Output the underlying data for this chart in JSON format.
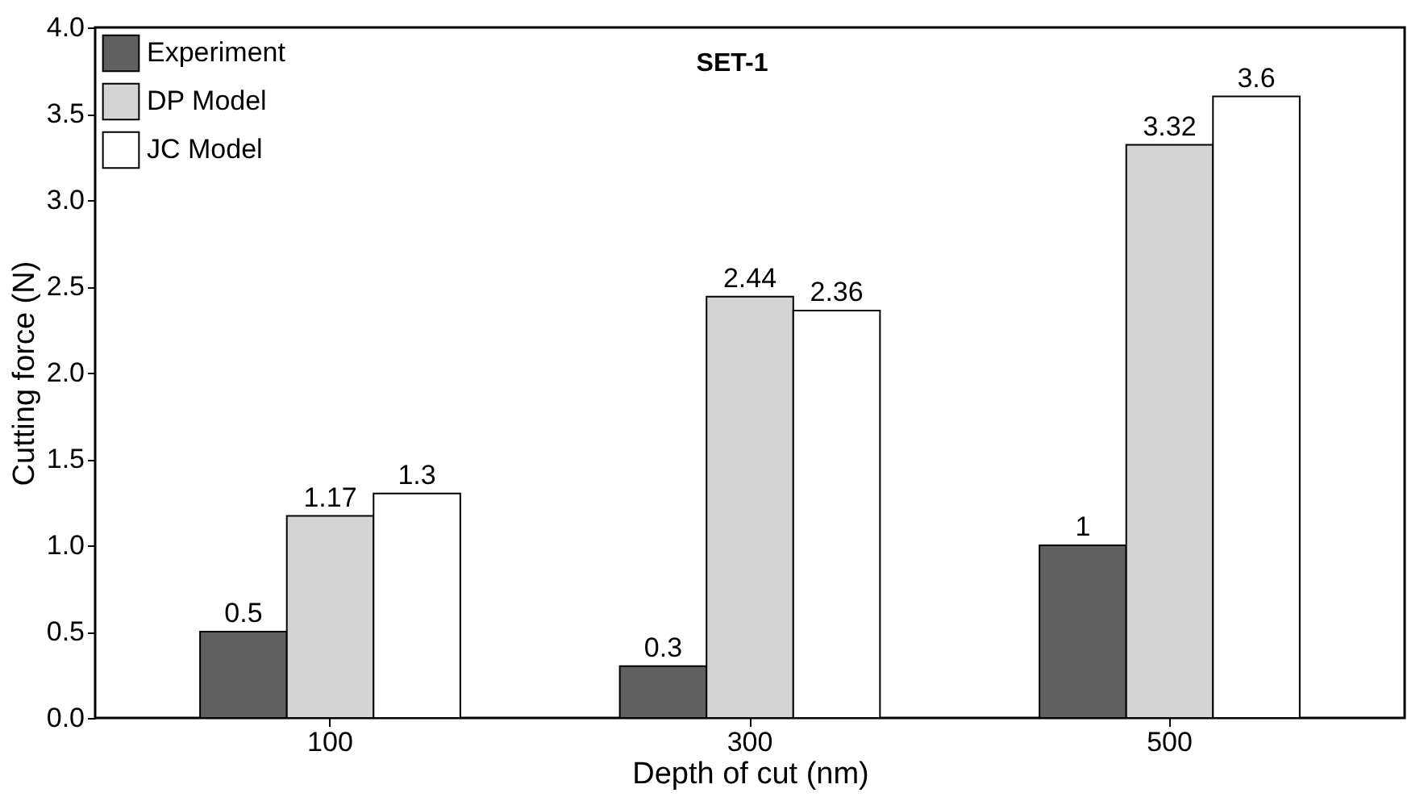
{
  "chart_data": {
    "type": "bar",
    "xlabel": "Depth of cut (nm)",
    "ylabel": "Cutting force (N)",
    "categories": [
      "100",
      "300",
      "500"
    ],
    "series": [
      {
        "name": "Experiment",
        "color": "#606060",
        "values": [
          0.5,
          0.3,
          1
        ]
      },
      {
        "name": "DP Model",
        "color": "#d4d4d4",
        "values": [
          1.17,
          2.44,
          3.32
        ]
      },
      {
        "name": "JC Model",
        "color": "#ffffff",
        "values": [
          1.3,
          2.36,
          3.6
        ]
      }
    ],
    "ylim": [
      0,
      4.0
    ],
    "yticks": [
      {
        "value": 0,
        "label": "0.0"
      },
      {
        "value": 0.5,
        "label": "0.5"
      },
      {
        "value": 1,
        "label": "1.0"
      },
      {
        "value": 1.5,
        "label": "1.5"
      },
      {
        "value": 2,
        "label": "2.0"
      },
      {
        "value": 2.5,
        "label": "2.5"
      },
      {
        "value": 3,
        "label": "3.0"
      },
      {
        "value": 3.5,
        "label": "3.5"
      },
      {
        "value": 4,
        "label": "4.0"
      }
    ],
    "annotations": [
      "SET-1"
    ],
    "data_labels": true,
    "legend": "top left",
    "grid": false
  }
}
